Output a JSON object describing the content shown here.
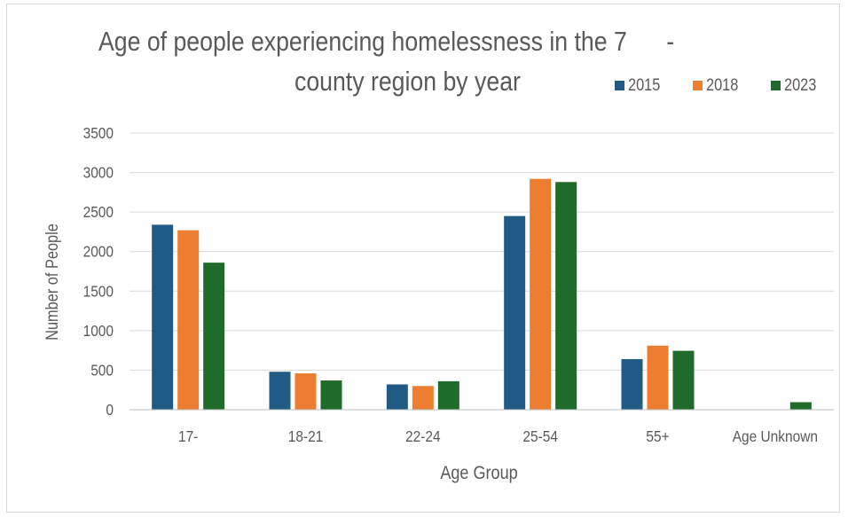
{
  "chart_data": {
    "type": "bar",
    "title_line1": "Age of people experiencing homelessness in the 7      -",
    "title_line2": "county region by year",
    "xlabel": "Age Group",
    "ylabel": "Number of People",
    "categories": [
      "17-",
      "18-21",
      "22-24",
      "25-54",
      "55+",
      "Age Unknown"
    ],
    "series": [
      {
        "name": "2015",
        "color": "#1f5b84",
        "values": [
          2340,
          480,
          320,
          2450,
          640,
          null
        ]
      },
      {
        "name": "2018",
        "color": "#ed7d31",
        "values": [
          2270,
          460,
          300,
          2920,
          810,
          null
        ]
      },
      {
        "name": "2023",
        "color": "#1e6b2c",
        "values": [
          1860,
          370,
          360,
          2880,
          745,
          95
        ]
      }
    ],
    "ylim": [
      0,
      3500
    ],
    "yticks": [
      "0",
      "500",
      "1000",
      "1500",
      "2000",
      "2500",
      "3000",
      "3500"
    ],
    "grid": true,
    "legend_position": "top-right"
  }
}
